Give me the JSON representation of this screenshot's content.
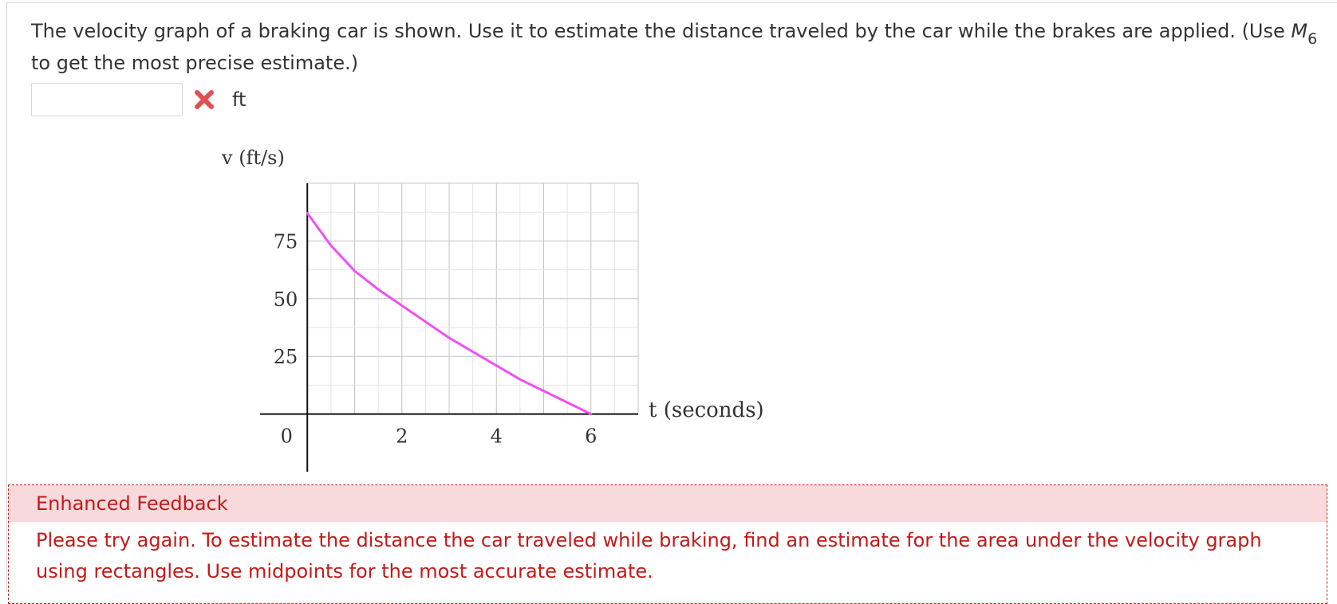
{
  "question": {
    "text_before": "The velocity graph of a braking car is shown. Use it to estimate the distance traveled by the car while the brakes are applied. (Use ",
    "math_symbol": "M",
    "math_subscript": "6",
    "text_after": " to get the most precise estimate.)"
  },
  "answer": {
    "value": "",
    "placeholder": "",
    "status_icon": "red-x-icon",
    "unit": "ft"
  },
  "colors": {
    "curve": "#f050f5",
    "wrong": "#e05050",
    "feedback_text": "#c11a1a",
    "feedback_bg": "#f8dadd"
  },
  "chart_data": {
    "type": "line",
    "title": "",
    "ylabel": "v (ft/s)",
    "xlabel": "t (seconds)",
    "xlim": [
      -1,
      7
    ],
    "ylim": [
      -25,
      100
    ],
    "x_ticks": [
      0,
      2,
      4,
      6
    ],
    "y_ticks": [
      25,
      50,
      75
    ],
    "grid": true,
    "grid_minor_step": 0.5,
    "grid_major_step_x": 1,
    "grid_major_step_y": 25,
    "series": [
      {
        "x": [
          0,
          0.5,
          1,
          1.5,
          2,
          2.5,
          3,
          3.5,
          4,
          4.5,
          5,
          5.5,
          6
        ],
        "values": [
          87,
          73,
          62,
          54,
          47,
          40,
          33,
          27,
          21,
          15,
          10,
          5,
          0
        ]
      }
    ]
  },
  "feedback": {
    "title": "Enhanced Feedback",
    "body": "Please try again. To estimate the distance the car traveled while braking, find an estimate for the area under the velocity graph using rectangles. Use midpoints for the most accurate estimate."
  }
}
